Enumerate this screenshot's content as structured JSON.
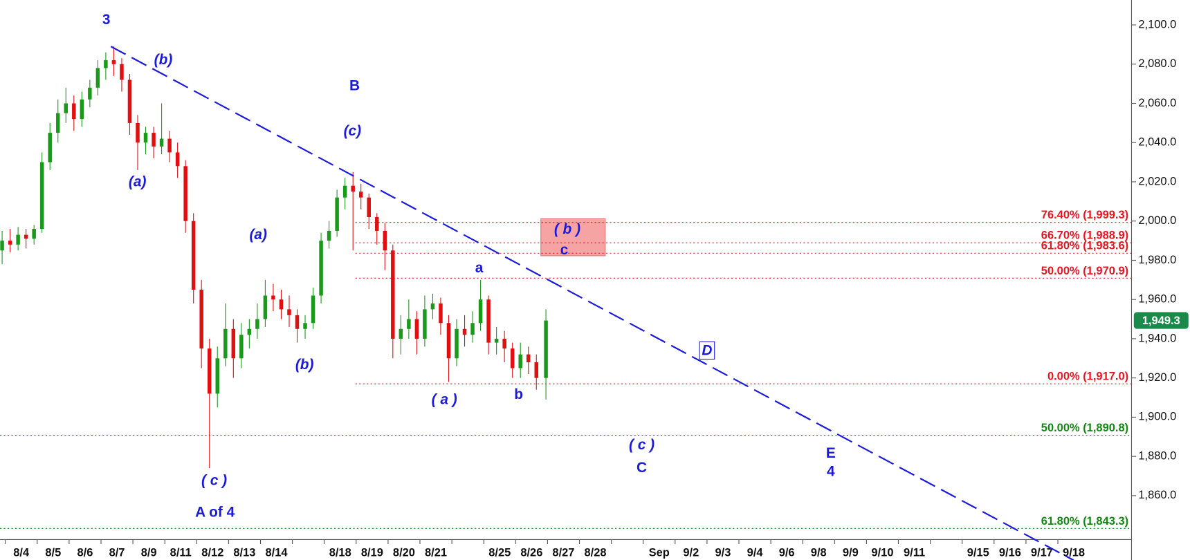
{
  "chart_data": {
    "type": "candlestick",
    "categories": [
      "8/4",
      "8/5",
      "8/6",
      "8/7",
      "8/9",
      "8/11",
      "8/12",
      "8/13",
      "8/14",
      null,
      "8/18",
      "8/19",
      "8/20",
      "8/21",
      null,
      "8/25",
      "8/26",
      "8/27",
      "8/28",
      null,
      "Sep",
      "9/2",
      "9/3",
      "9/4",
      "9/6",
      "9/8",
      "9/9",
      "9/10",
      "9/11",
      null,
      "9/15",
      "9/16",
      "9/17",
      "9/18"
    ],
    "ylim": [
      1837.6,
      2112.7
    ],
    "yticks": [
      {
        "value": 1860,
        "label": "1,860.0"
      },
      {
        "value": 1880,
        "label": "1,880.0"
      },
      {
        "value": 1900,
        "label": "1,900.0"
      },
      {
        "value": 1920,
        "label": "1,920.0"
      },
      {
        "value": 1940,
        "label": "1,940.0"
      },
      {
        "value": 1960,
        "label": "1,960.0"
      },
      {
        "value": 1980,
        "label": "1,980.0"
      },
      {
        "value": 2000,
        "label": "2,000.0"
      },
      {
        "value": 2020,
        "label": "2,020.0"
      },
      {
        "value": 2040,
        "label": "2,040.0"
      },
      {
        "value": 2060,
        "label": "2,060.0"
      },
      {
        "value": 2080,
        "label": "2,080.0"
      },
      {
        "value": 2100,
        "label": "2,100.0"
      }
    ],
    "up_color": "#1a9a1a",
    "down_color": "#e01010",
    "candles": [
      {
        "x": -0.6,
        "o": 1985,
        "h": 1995,
        "l": 1978,
        "c": 1990
      },
      {
        "x": -0.35,
        "o": 1990,
        "h": 1996,
        "l": 1984,
        "c": 1988
      },
      {
        "x": -0.1,
        "o": 1988,
        "h": 1997,
        "l": 1985,
        "c": 1993
      },
      {
        "x": 0.15,
        "o": 1993,
        "h": 1996,
        "l": 1986,
        "c": 1991
      },
      {
        "x": 0.4,
        "o": 1991,
        "h": 1998,
        "l": 1988,
        "c": 1996
      },
      {
        "x": 0.65,
        "o": 1996,
        "h": 2035,
        "l": 1994,
        "c": 2030
      },
      {
        "x": 0.9,
        "o": 2030,
        "h": 2050,
        "l": 2026,
        "c": 2045
      },
      {
        "x": 1.15,
        "o": 2045,
        "h": 2062,
        "l": 2040,
        "c": 2055
      },
      {
        "x": 1.4,
        "o": 2055,
        "h": 2068,
        "l": 2050,
        "c": 2060
      },
      {
        "x": 1.65,
        "o": 2060,
        "h": 2064,
        "l": 2046,
        "c": 2052
      },
      {
        "x": 1.9,
        "o": 2052,
        "h": 2066,
        "l": 2048,
        "c": 2062
      },
      {
        "x": 2.15,
        "o": 2062,
        "h": 2072,
        "l": 2058,
        "c": 2068
      },
      {
        "x": 2.4,
        "o": 2068,
        "h": 2082,
        "l": 2064,
        "c": 2078
      },
      {
        "x": 2.65,
        "o": 2078,
        "h": 2086,
        "l": 2072,
        "c": 2082
      },
      {
        "x": 2.9,
        "o": 2082,
        "h": 2089,
        "l": 2074,
        "c": 2080
      },
      {
        "x": 3.15,
        "o": 2080,
        "h": 2083,
        "l": 2066,
        "c": 2072
      },
      {
        "x": 3.4,
        "o": 2072,
        "h": 2075,
        "l": 2044,
        "c": 2050
      },
      {
        "x": 3.65,
        "o": 2050,
        "h": 2054,
        "l": 2026,
        "c": 2040
      },
      {
        "x": 3.9,
        "o": 2040,
        "h": 2048,
        "l": 2034,
        "c": 2045
      },
      {
        "x": 4.15,
        "o": 2045,
        "h": 2048,
        "l": 2032,
        "c": 2038
      },
      {
        "x": 4.4,
        "o": 2038,
        "h": 2060,
        "l": 2034,
        "c": 2042
      },
      {
        "x": 4.65,
        "o": 2042,
        "h": 2046,
        "l": 2030,
        "c": 2035
      },
      {
        "x": 4.9,
        "o": 2035,
        "h": 2040,
        "l": 2022,
        "c": 2028
      },
      {
        "x": 5.15,
        "o": 2028,
        "h": 2031,
        "l": 1994,
        "c": 2000
      },
      {
        "x": 5.4,
        "o": 2000,
        "h": 2004,
        "l": 1958,
        "c": 1965
      },
      {
        "x": 5.65,
        "o": 1965,
        "h": 1970,
        "l": 1925,
        "c": 1935
      },
      {
        "x": 5.9,
        "o": 1935,
        "h": 1940,
        "l": 1874,
        "c": 1912
      },
      {
        "x": 6.15,
        "o": 1912,
        "h": 1936,
        "l": 1905,
        "c": 1930
      },
      {
        "x": 6.4,
        "o": 1930,
        "h": 1958,
        "l": 1926,
        "c": 1945
      },
      {
        "x": 6.65,
        "o": 1945,
        "h": 1950,
        "l": 1920,
        "c": 1930
      },
      {
        "x": 6.9,
        "o": 1930,
        "h": 1948,
        "l": 1925,
        "c": 1942
      },
      {
        "x": 7.15,
        "o": 1942,
        "h": 1950,
        "l": 1935,
        "c": 1945
      },
      {
        "x": 7.4,
        "o": 1945,
        "h": 1958,
        "l": 1940,
        "c": 1950
      },
      {
        "x": 7.65,
        "o": 1950,
        "h": 1970,
        "l": 1946,
        "c": 1962
      },
      {
        "x": 7.9,
        "o": 1962,
        "h": 1968,
        "l": 1954,
        "c": 1960
      },
      {
        "x": 8.15,
        "o": 1960,
        "h": 1965,
        "l": 1950,
        "c": 1955
      },
      {
        "x": 8.4,
        "o": 1955,
        "h": 1962,
        "l": 1946,
        "c": 1952
      },
      {
        "x": 8.65,
        "o": 1952,
        "h": 1955,
        "l": 1938,
        "c": 1945
      },
      {
        "x": 8.9,
        "o": 1945,
        "h": 1952,
        "l": 1940,
        "c": 1948
      },
      {
        "x": 9.15,
        "o": 1948,
        "h": 1966,
        "l": 1945,
        "c": 1962
      },
      {
        "x": 9.4,
        "o": 1962,
        "h": 1994,
        "l": 1958,
        "c": 1990
      },
      {
        "x": 9.65,
        "o": 1990,
        "h": 2000,
        "l": 1986,
        "c": 1995
      },
      {
        "x": 9.9,
        "o": 1995,
        "h": 2016,
        "l": 1992,
        "c": 2012
      },
      {
        "x": 10.15,
        "o": 2012,
        "h": 2022,
        "l": 2006,
        "c": 2018
      },
      {
        "x": 10.4,
        "o": 2018,
        "h": 2025,
        "l": 1985,
        "c": 2015
      },
      {
        "x": 10.65,
        "o": 2015,
        "h": 2019,
        "l": 2006,
        "c": 2012
      },
      {
        "x": 10.9,
        "o": 2012,
        "h": 2014,
        "l": 1996,
        "c": 2002
      },
      {
        "x": 11.15,
        "o": 2002,
        "h": 2004,
        "l": 1988,
        "c": 1995
      },
      {
        "x": 11.4,
        "o": 1995,
        "h": 1999,
        "l": 1975,
        "c": 1985
      },
      {
        "x": 11.65,
        "o": 1985,
        "h": 1988,
        "l": 1930,
        "c": 1940
      },
      {
        "x": 11.9,
        "o": 1940,
        "h": 1952,
        "l": 1932,
        "c": 1945
      },
      {
        "x": 12.15,
        "o": 1945,
        "h": 1960,
        "l": 1940,
        "c": 1950
      },
      {
        "x": 12.4,
        "o": 1950,
        "h": 1954,
        "l": 1932,
        "c": 1940
      },
      {
        "x": 12.65,
        "o": 1940,
        "h": 1962,
        "l": 1936,
        "c": 1955
      },
      {
        "x": 12.9,
        "o": 1955,
        "h": 1963,
        "l": 1950,
        "c": 1958
      },
      {
        "x": 13.15,
        "o": 1958,
        "h": 1961,
        "l": 1942,
        "c": 1948
      },
      {
        "x": 13.4,
        "o": 1948,
        "h": 1952,
        "l": 1918,
        "c": 1930
      },
      {
        "x": 13.65,
        "o": 1930,
        "h": 1950,
        "l": 1926,
        "c": 1945
      },
      {
        "x": 13.9,
        "o": 1945,
        "h": 1952,
        "l": 1936,
        "c": 1942
      },
      {
        "x": 14.15,
        "o": 1942,
        "h": 1954,
        "l": 1938,
        "c": 1948
      },
      {
        "x": 14.4,
        "o": 1948,
        "h": 1970,
        "l": 1944,
        "c": 1960
      },
      {
        "x": 14.65,
        "o": 1960,
        "h": 1962,
        "l": 1932,
        "c": 1938
      },
      {
        "x": 14.9,
        "o": 1938,
        "h": 1946,
        "l": 1932,
        "c": 1940
      },
      {
        "x": 15.15,
        "o": 1940,
        "h": 1944,
        "l": 1928,
        "c": 1935
      },
      {
        "x": 15.4,
        "o": 1935,
        "h": 1938,
        "l": 1920,
        "c": 1925
      },
      {
        "x": 15.65,
        "o": 1925,
        "h": 1938,
        "l": 1920,
        "c": 1932
      },
      {
        "x": 15.9,
        "o": 1932,
        "h": 1936,
        "l": 1922,
        "c": 1928
      },
      {
        "x": 16.15,
        "o": 1928,
        "h": 1932,
        "l": 1914,
        "c": 1920
      },
      {
        "x": 16.45,
        "o": 1920,
        "h": 1955,
        "l": 1909,
        "c": 1949.3
      }
    ],
    "levels": [
      {
        "label": "76.40% (1,999.3)",
        "value": 1999.3,
        "color": "#e8141e"
      },
      {
        "label": "66.70% (1,988.9)",
        "value": 1988.9,
        "color": "#e8141e"
      },
      {
        "label": "61.80% (1,983.6)",
        "value": 1983.6,
        "color": "#e8141e"
      },
      {
        "label": "50.00% (1,970.9)",
        "value": 1970.9,
        "color": "#e8141e"
      },
      {
        "label": "0.00% (1,917.0)",
        "value": 1917.0,
        "color": "#e8141e"
      },
      {
        "label": "50.00% (1,890.8)",
        "value": 1890.8,
        "color": "#118811"
      },
      {
        "label": "61.80% (1,843.3)",
        "value": 1843.3,
        "color": "#118811"
      }
    ],
    "trendline": {
      "x": [
        2.81,
        33.0
      ],
      "y": [
        2089,
        1827
      ],
      "color": "#1a1adb"
    },
    "zone": {
      "x": [
        16.29,
        18.31
      ],
      "y": [
        1982.3,
        2001.2
      ],
      "color": "#f5a3a3"
    },
    "last_price": {
      "value": 1949.3,
      "label": "1,949.3",
      "color": "#1a8a4a"
    },
    "annotations": [
      {
        "text": "3",
        "italic": false
      },
      {
        "text": "(b)",
        "italic": true
      },
      {
        "text": "B",
        "italic": false
      },
      {
        "text": "(c)",
        "italic": true
      },
      {
        "text": "(a)",
        "italic": true
      },
      {
        "text": "(a)",
        "italic": true
      },
      {
        "text": "(b)",
        "italic": true
      },
      {
        "text": "( c )",
        "italic": true
      },
      {
        "text": "A of 4",
        "italic": false
      },
      {
        "text": "( b )",
        "italic": true
      },
      {
        "text": "c",
        "italic": false
      },
      {
        "text": "a",
        "italic": false
      },
      {
        "text": "( a )",
        "italic": true
      },
      {
        "text": "b",
        "italic": false
      },
      {
        "text": "( c )",
        "italic": true
      },
      {
        "text": "C",
        "italic": false
      },
      {
        "text": "D",
        "italic": true,
        "boxed": true
      },
      {
        "text": "E",
        "italic": false
      },
      {
        "text": "4",
        "italic": false
      }
    ]
  }
}
